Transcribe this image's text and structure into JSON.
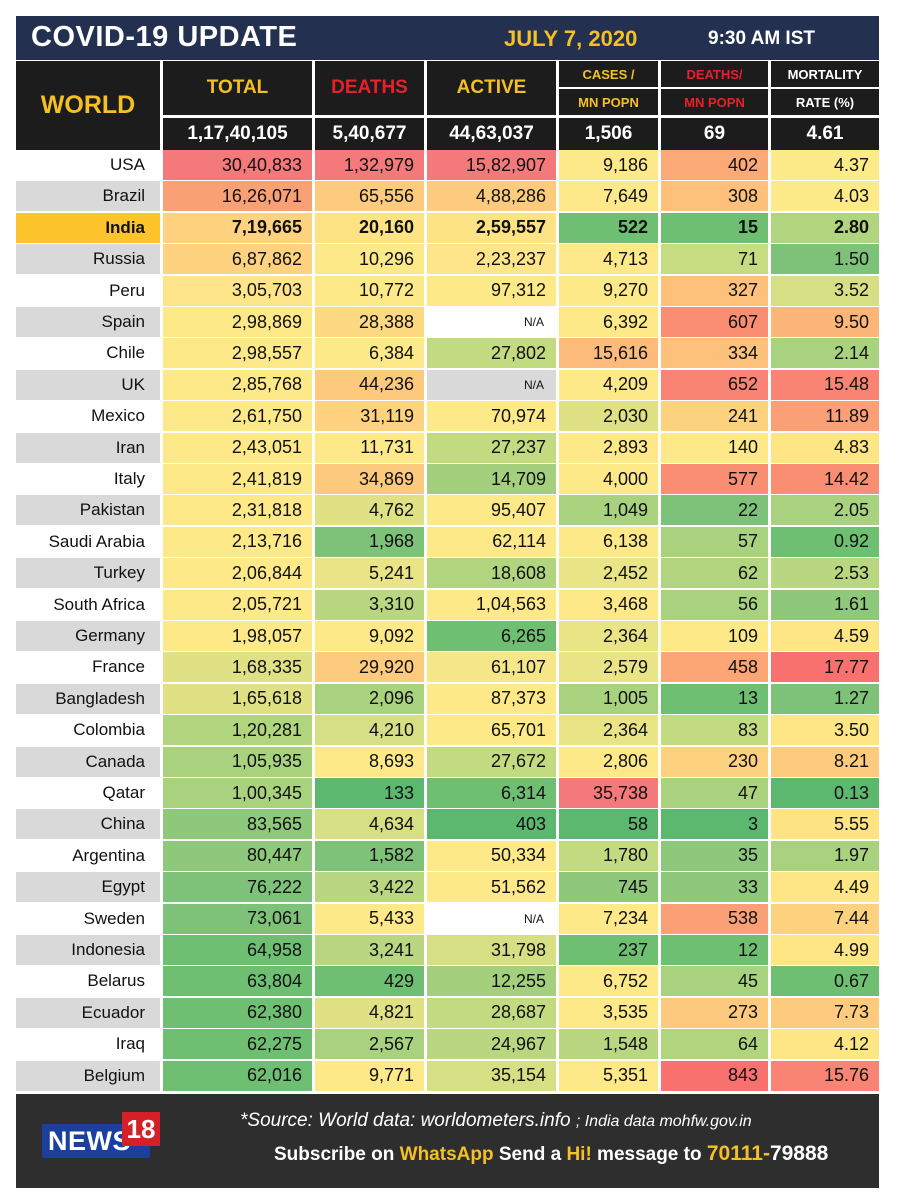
{
  "header": {
    "title": "COVID-19 UPDATE",
    "date": "JULY 7, 2020",
    "time": "9:30 AM IST"
  },
  "columns": {
    "world": "WORLD",
    "total": "TOTAL",
    "deaths": "DEATHS",
    "active": "ACTIVE",
    "cases_mn_1": "CASES /",
    "cases_mn_2": "MN POPN",
    "deaths_mn_1": "DEATHS/",
    "deaths_mn_2": "MN POPN",
    "mort_1": "MORTALITY",
    "mort_2": "RATE (%)"
  },
  "world_totals": {
    "total": "1,17,40,105",
    "deaths": "5,40,677",
    "active": "44,63,037",
    "cases_mn": "1,506",
    "deaths_mn": "69",
    "mortality": "4.61"
  },
  "rows": [
    {
      "country": "USA",
      "total": "30,40,833",
      "deaths": "1,32,979",
      "active": "15,82,907",
      "cases_mn": "9,186",
      "deaths_mn": "402",
      "mortality": "4.37",
      "colors": [
        "#f3797a",
        "#f3797a",
        "#f3797a",
        "#fde989",
        "#fba977",
        "#fdea88"
      ]
    },
    {
      "country": "Brazil",
      "total": "16,26,071",
      "deaths": "65,556",
      "active": "4,88,286",
      "cases_mn": "7,649",
      "deaths_mn": "308",
      "mortality": "4.03",
      "colors": [
        "#f9a075",
        "#fdcb7d",
        "#fdcb7d",
        "#fde989",
        "#fdc17b",
        "#fdea88"
      ]
    },
    {
      "country": "India",
      "total": "7,19,665",
      "deaths": "20,160",
      "active": "2,59,557",
      "cases_mn": "522",
      "deaths_mn": "15",
      "mortality": "2.80",
      "colors": [
        "#fed27f",
        "#fee384",
        "#fee384",
        "#6fbf73",
        "#6fbf73",
        "#b1d57f"
      ],
      "bold": true
    },
    {
      "country": "Russia",
      "total": "6,87,862",
      "deaths": "10,296",
      "active": "2,23,237",
      "cases_mn": "4,713",
      "deaths_mn": "71",
      "mortality": "1.50",
      "colors": [
        "#fed27f",
        "#fee989",
        "#fee589",
        "#fee98a",
        "#c7db81",
        "#7dc278"
      ]
    },
    {
      "country": "Peru",
      "total": "3,05,703",
      "deaths": "10,772",
      "active": "97,312",
      "cases_mn": "9,270",
      "deaths_mn": "327",
      "mortality": "3.52",
      "colors": [
        "#fee589",
        "#fee989",
        "#fee989",
        "#fee989",
        "#fdc17b",
        "#d6df83"
      ]
    },
    {
      "country": "Spain",
      "total": "2,98,869",
      "deaths": "28,388",
      "active": "N/A",
      "cases_mn": "6,392",
      "deaths_mn": "607",
      "mortality": "9.50",
      "colors": [
        "#fee989",
        "#fdda81",
        "#ffffff",
        "#fee989",
        "#f98e73",
        "#fdb679"
      ]
    },
    {
      "country": "Chile",
      "total": "2,98,557",
      "deaths": "6,384",
      "active": "27,802",
      "cases_mn": "15,616",
      "deaths_mn": "334",
      "mortality": "2.14",
      "colors": [
        "#fee989",
        "#fee989",
        "#c2da80",
        "#fcbb7a",
        "#fdc17b",
        "#a9d27e"
      ]
    },
    {
      "country": "UK",
      "total": "2,85,768",
      "deaths": "44,236",
      "active": "N/A",
      "cases_mn": "4,209",
      "deaths_mn": "652",
      "mortality": "15.48",
      "colors": [
        "#fee989",
        "#fdc97d",
        "#d9d9d9",
        "#fee989",
        "#f98473",
        "#f98473"
      ]
    },
    {
      "country": "Mexico",
      "total": "2,61,750",
      "deaths": "31,119",
      "active": "70,974",
      "cases_mn": "2,030",
      "deaths_mn": "241",
      "mortality": "11.89",
      "colors": [
        "#fee989",
        "#fed27f",
        "#fee989",
        "#dfe184",
        "#fdd27f",
        "#fba076"
      ]
    },
    {
      "country": "Iran",
      "total": "2,43,051",
      "deaths": "11,731",
      "active": "27,237",
      "cases_mn": "2,893",
      "deaths_mn": "140",
      "mortality": "4.83",
      "colors": [
        "#fee989",
        "#fee989",
        "#c2da80",
        "#fee989",
        "#fee989",
        "#fee685"
      ]
    },
    {
      "country": "Italy",
      "total": "2,41,819",
      "deaths": "34,869",
      "active": "14,709",
      "cases_mn": "4,000",
      "deaths_mn": "577",
      "mortality": "14.42",
      "colors": [
        "#fee989",
        "#fdc97d",
        "#a4d07e",
        "#fee989",
        "#f98e73",
        "#f98e73"
      ]
    },
    {
      "country": "Pakistan",
      "total": "2,31,818",
      "deaths": "4,762",
      "active": "95,407",
      "cases_mn": "1,049",
      "deaths_mn": "22",
      "mortality": "2.05",
      "colors": [
        "#fee989",
        "#dfe184",
        "#fee989",
        "#a9d27e",
        "#7dc278",
        "#a9d27e"
      ]
    },
    {
      "country": "Saudi Arabia",
      "total": "2,13,716",
      "deaths": "1,968",
      "active": "62,114",
      "cases_mn": "6,138",
      "deaths_mn": "57",
      "mortality": "0.92",
      "colors": [
        "#fee989",
        "#7dc278",
        "#fee989",
        "#fee989",
        "#a9d27e",
        "#6fbf73"
      ]
    },
    {
      "country": "Turkey",
      "total": "2,06,844",
      "deaths": "5,241",
      "active": "18,608",
      "cases_mn": "2,452",
      "deaths_mn": "62",
      "mortality": "2.53",
      "colors": [
        "#fee989",
        "#e9e486",
        "#b1d57f",
        "#e9e486",
        "#b1d57f",
        "#b9d780"
      ]
    },
    {
      "country": "South Africa",
      "total": "2,05,721",
      "deaths": "3,310",
      "active": "1,04,563",
      "cases_mn": "3,468",
      "deaths_mn": "56",
      "mortality": "1.61",
      "colors": [
        "#fee989",
        "#b9d780",
        "#fee989",
        "#fee989",
        "#a9d27e",
        "#8ec87a"
      ]
    },
    {
      "country": "Germany",
      "total": "1,98,057",
      "deaths": "9,092",
      "active": "6,265",
      "cases_mn": "2,364",
      "deaths_mn": "109",
      "mortality": "4.59",
      "colors": [
        "#fee989",
        "#fee989",
        "#6fbf73",
        "#e9e486",
        "#fee989",
        "#fee685"
      ]
    },
    {
      "country": "France",
      "total": "1,68,335",
      "deaths": "29,920",
      "active": "61,107",
      "cases_mn": "2,579",
      "deaths_mn": "458",
      "mortality": "17.77",
      "colors": [
        "#dfe184",
        "#fdcb7d",
        "#f5e688",
        "#e9e486",
        "#fca575",
        "#f8716f"
      ]
    },
    {
      "country": "Bangladesh",
      "total": "1,65,618",
      "deaths": "2,096",
      "active": "87,373",
      "cases_mn": "1,005",
      "deaths_mn": "13",
      "mortality": "1.27",
      "colors": [
        "#dfe184",
        "#a9d27e",
        "#fee989",
        "#a9d27e",
        "#6fbf73",
        "#7dc278"
      ]
    },
    {
      "country": "Colombia",
      "total": "1,20,281",
      "deaths": "4,210",
      "active": "65,701",
      "cases_mn": "2,364",
      "deaths_mn": "83",
      "mortality": "3.50",
      "colors": [
        "#b1d57f",
        "#d6df83",
        "#fee989",
        "#e9e486",
        "#c2da80",
        "#fee685"
      ]
    },
    {
      "country": "Canada",
      "total": "1,05,935",
      "deaths": "8,693",
      "active": "27,672",
      "cases_mn": "2,806",
      "deaths_mn": "230",
      "mortality": "8.21",
      "colors": [
        "#a9d27e",
        "#fee989",
        "#c2da80",
        "#fee989",
        "#fdd27f",
        "#fdcb7d"
      ]
    },
    {
      "country": "Qatar",
      "total": "1,00,345",
      "deaths": "133",
      "active": "6,314",
      "cases_mn": "35,738",
      "deaths_mn": "47",
      "mortality": "0.13",
      "colors": [
        "#a9d27e",
        "#5cb86e",
        "#6fbf73",
        "#f3797a",
        "#a9d27e",
        "#5cb86e"
      ]
    },
    {
      "country": "China",
      "total": "83,565",
      "deaths": "4,634",
      "active": "403",
      "cases_mn": "58",
      "deaths_mn": "3",
      "mortality": "5.55",
      "colors": [
        "#8ec87a",
        "#d6df83",
        "#5cb86e",
        "#5cb86e",
        "#5cb86e",
        "#fee383"
      ]
    },
    {
      "country": "Argentina",
      "total": "80,447",
      "deaths": "1,582",
      "active": "50,334",
      "cases_mn": "1,780",
      "deaths_mn": "35",
      "mortality": "1.97",
      "colors": [
        "#8ec87a",
        "#7dc278",
        "#fee989",
        "#c2da80",
        "#8ec87a",
        "#a9d27e"
      ]
    },
    {
      "country": "Egypt",
      "total": "76,222",
      "deaths": "3,422",
      "active": "51,562",
      "cases_mn": "745",
      "deaths_mn": "33",
      "mortality": "4.49",
      "colors": [
        "#7dc278",
        "#b9d780",
        "#fee989",
        "#8ec87a",
        "#8ec87a",
        "#fee685"
      ]
    },
    {
      "country": "Sweden",
      "total": "73,061",
      "deaths": "5,433",
      "active": "N/A",
      "cases_mn": "7,234",
      "deaths_mn": "538",
      "mortality": "7.44",
      "colors": [
        "#7dc278",
        "#fee989",
        "#ffffff",
        "#fee989",
        "#fba076",
        "#fdd27f"
      ]
    },
    {
      "country": "Indonesia",
      "total": "64,958",
      "deaths": "3,241",
      "active": "31,798",
      "cases_mn": "237",
      "deaths_mn": "12",
      "mortality": "4.99",
      "colors": [
        "#6fbf73",
        "#b9d780",
        "#d6df83",
        "#6fbf73",
        "#6fbf73",
        "#fee685"
      ]
    },
    {
      "country": "Belarus",
      "total": "63,804",
      "deaths": "429",
      "active": "12,255",
      "cases_mn": "6,752",
      "deaths_mn": "45",
      "mortality": "0.67",
      "colors": [
        "#6fbf73",
        "#6fbf73",
        "#a4d07e",
        "#fee989",
        "#a9d27e",
        "#6fbf73"
      ]
    },
    {
      "country": "Ecuador",
      "total": "62,380",
      "deaths": "4,821",
      "active": "28,687",
      "cases_mn": "3,535",
      "deaths_mn": "273",
      "mortality": "7.73",
      "colors": [
        "#6fbf73",
        "#dfe184",
        "#c2da80",
        "#fee989",
        "#fdc97d",
        "#fdcb7d"
      ]
    },
    {
      "country": "Iraq",
      "total": "62,275",
      "deaths": "2,567",
      "active": "24,967",
      "cases_mn": "1,548",
      "deaths_mn": "64",
      "mortality": "4.12",
      "colors": [
        "#6fbf73",
        "#a9d27e",
        "#b9d780",
        "#b9d780",
        "#b1d57f",
        "#fee685"
      ]
    },
    {
      "country": "Belgium",
      "total": "62,016",
      "deaths": "9,771",
      "active": "35,154",
      "cases_mn": "5,351",
      "deaths_mn": "843",
      "mortality": "15.76",
      "colors": [
        "#6fbf73",
        "#fee989",
        "#d6df83",
        "#fee989",
        "#f8716f",
        "#f98473"
      ]
    }
  ],
  "footer": {
    "logo_text": "NEWS",
    "logo_num": "18",
    "source_label": "*Source:",
    "source_world": "World data: worldometers.info",
    "source_india": "; India data mohfw.gov.in",
    "sub_1": "Subscribe on ",
    "sub_2": "WhatsApp",
    "sub_3": " Send a ",
    "sub_4": "Hi!",
    "sub_5": " message to ",
    "sub_6": "70111-",
    "sub_7": "79888"
  },
  "colors": {
    "title_bg": "#23304f",
    "accent_yellow": "#f5c023",
    "header_red": "#e8202a",
    "header_yellow": "#f5c023",
    "world_label": "#f5c023",
    "india_label_bg": "#fdc42b"
  }
}
